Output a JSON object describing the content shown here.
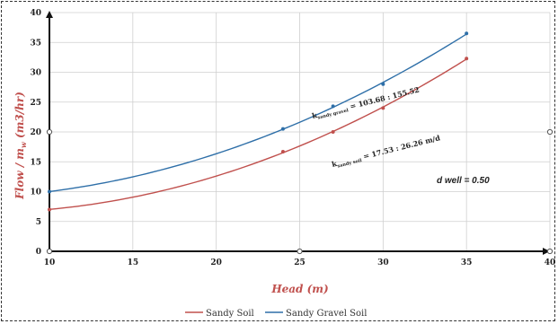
{
  "chart_data": {
    "type": "line",
    "xlabel": "Head  (m)",
    "ylabel": "Flow  /  m",
    "ylabel_sub": "w",
    "ylabel_unit": " (m3/hr)",
    "xlim": [
      10,
      40
    ],
    "ylim": [
      0,
      40
    ],
    "xticks": [
      10,
      15,
      20,
      25,
      30,
      35,
      40
    ],
    "yticks": [
      0,
      5,
      10,
      15,
      20,
      25,
      30,
      35,
      40
    ],
    "grid": true,
    "legend_position": "bottom",
    "series": [
      {
        "name": "Sandy Soil",
        "color": "#c0504d",
        "x": [
          10,
          24,
          27,
          30,
          35
        ],
        "y": [
          7.0,
          16.7,
          20.0,
          24.0,
          32.3
        ]
      },
      {
        "name": "Sandy Gravel Soil",
        "color": "#2e6fa8",
        "x": [
          10,
          24,
          27,
          30,
          35
        ],
        "y": [
          10.0,
          20.5,
          24.3,
          28.0,
          36.5
        ]
      }
    ],
    "annotations": {
      "k_gravel_prefix": "k",
      "k_gravel_sub": "sandy gravel",
      "k_gravel_value": " = 103.68 : 155.52",
      "k_sandy_prefix": "k",
      "k_sandy_sub": "sandy soil",
      "k_sandy_value": " = 17.53 : 26.26 m/d",
      "d_well": "d well = 0.50"
    }
  }
}
